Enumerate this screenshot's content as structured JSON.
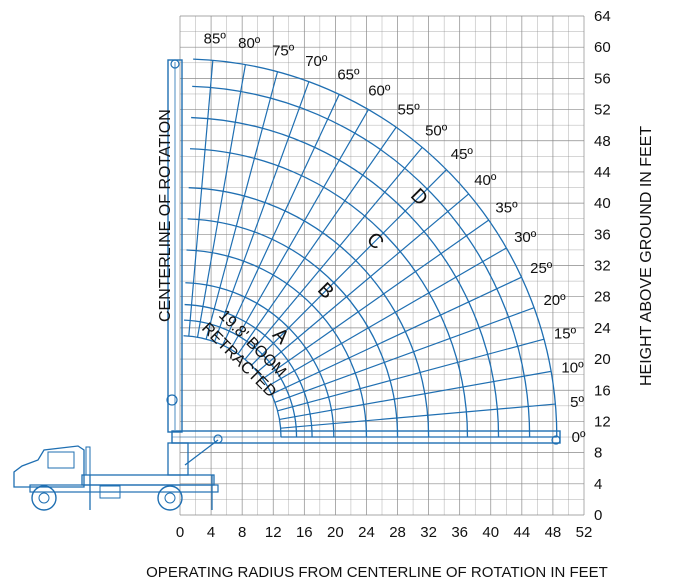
{
  "chart_data": {
    "type": "range-diagram",
    "xlabel": "OPERATING RADIUS FROM CENTERLINE OF ROTATION IN FEET",
    "ylabel": "HEIGHT ABOVE GROUND IN FEET",
    "centerline_label": "CENTERLINE OF ROTATION",
    "boom_label_line1": "19.8' BOOM",
    "boom_label_line2": "RETRACTED",
    "x_ticks": [
      "0",
      "4",
      "8",
      "12",
      "16",
      "20",
      "24",
      "28",
      "32",
      "36",
      "40",
      "44",
      "48",
      "52"
    ],
    "y_ticks": [
      "0",
      "4",
      "8",
      "12",
      "16",
      "20",
      "24",
      "28",
      "32",
      "36",
      "40",
      "44",
      "48",
      "52",
      "56",
      "60",
      "64"
    ],
    "xlim": [
      0,
      52
    ],
    "ylim": [
      0,
      64
    ],
    "boom_pivot": [
      0,
      10
    ],
    "angles": [
      0,
      5,
      10,
      15,
      20,
      25,
      30,
      35,
      40,
      45,
      50,
      55,
      60,
      65,
      70,
      75,
      80,
      85
    ],
    "angle_labels": [
      "0º",
      "5º",
      "10º",
      "15º",
      "20º",
      "25º",
      "30º",
      "35º",
      "40º",
      "45º",
      "50º",
      "55º",
      "60º",
      "65º",
      "70º",
      "75º",
      "80º",
      "85º"
    ],
    "boom_sections": [
      {
        "label": "A",
        "extension_ft": 19.8
      },
      {
        "label": "B",
        "extension_ft": 28
      },
      {
        "label": "C",
        "extension_ft": 37
      },
      {
        "label": "D",
        "extension_ft": 45
      }
    ],
    "arc_radii_ft": [
      13,
      15,
      17,
      19.8,
      24,
      28,
      32,
      37,
      41,
      45,
      48.5
    ],
    "grid": true,
    "colors": {
      "grid": "#8a8a8a",
      "range": "#1f6fb2",
      "text": "#111111"
    }
  }
}
